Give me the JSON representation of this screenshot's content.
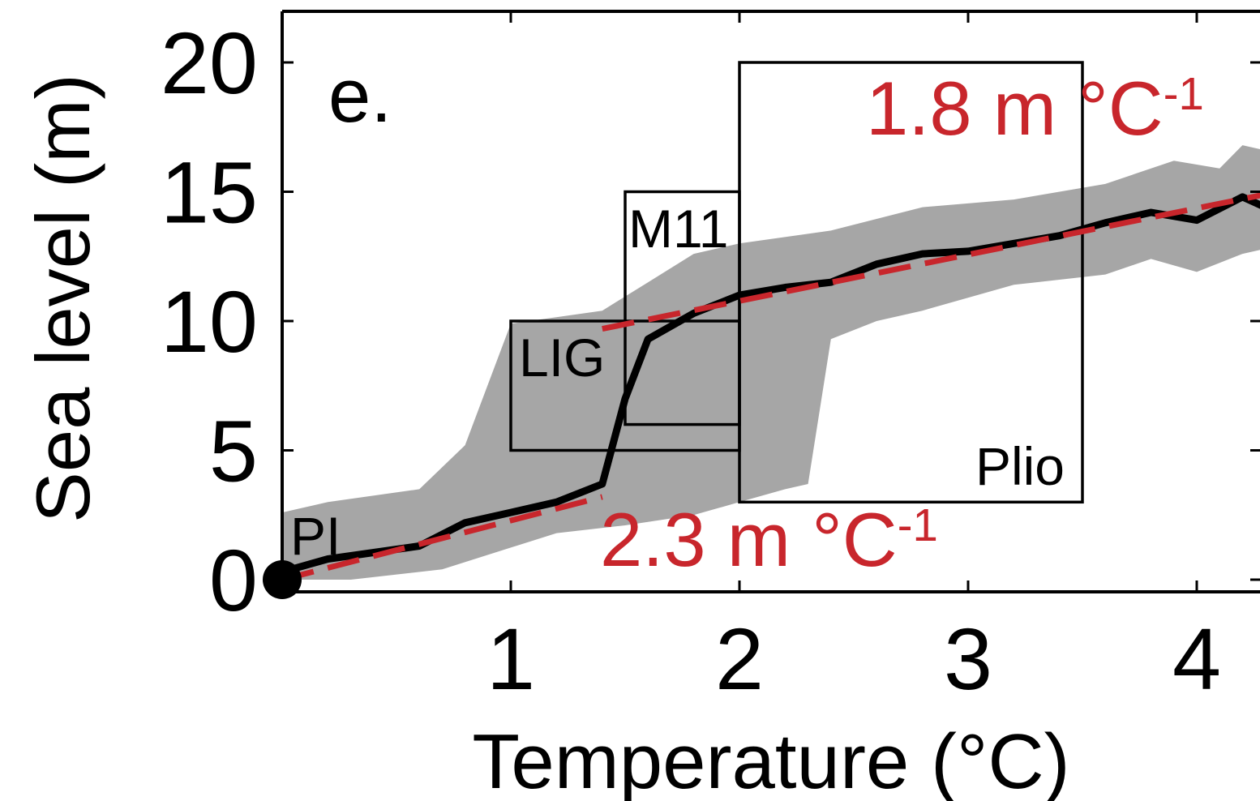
{
  "chart_data": {
    "type": "line",
    "panel_label": "e.",
    "xlabel": "Temperature (°C)",
    "ylabel": "Sea level (m)",
    "xlim": [
      0,
      4.3
    ],
    "ylim": [
      0,
      22
    ],
    "x_ticks": [
      1,
      2,
      3,
      4
    ],
    "y_ticks": [
      0,
      5,
      10,
      15,
      20
    ],
    "grid": false,
    "colors": {
      "band": "#a6a6a6",
      "line": "#000000",
      "fit": "#c8262c",
      "annotation": "#c8262c",
      "box": "#000000",
      "axis": "#000000"
    },
    "uncertainty_band": {
      "upper": [
        [
          0,
          2.6
        ],
        [
          0.2,
          3.0
        ],
        [
          0.6,
          3.5
        ],
        [
          0.8,
          5.2
        ],
        [
          1.0,
          9.9
        ],
        [
          1.4,
          10.4
        ],
        [
          1.6,
          11.5
        ],
        [
          1.8,
          12.6
        ],
        [
          2.0,
          13.0
        ],
        [
          2.4,
          13.5
        ],
        [
          2.8,
          14.4
        ],
        [
          3.2,
          14.7
        ],
        [
          3.6,
          15.3
        ],
        [
          3.9,
          16.2
        ],
        [
          4.1,
          15.9
        ],
        [
          4.2,
          16.8
        ],
        [
          4.3,
          16.6
        ]
      ],
      "lower": [
        [
          4.3,
          12.8
        ],
        [
          4.2,
          12.6
        ],
        [
          4.0,
          11.9
        ],
        [
          3.8,
          12.4
        ],
        [
          3.6,
          11.8
        ],
        [
          3.2,
          11.4
        ],
        [
          2.8,
          10.4
        ],
        [
          2.6,
          10.0
        ],
        [
          2.4,
          9.3
        ],
        [
          2.3,
          3.7
        ],
        [
          2.2,
          3.5
        ],
        [
          2.0,
          3.0
        ],
        [
          1.8,
          2.5
        ],
        [
          1.5,
          2.1
        ],
        [
          1.2,
          1.8
        ],
        [
          0.7,
          0.4
        ],
        [
          0.3,
          0.0
        ],
        [
          0,
          0.0
        ]
      ]
    },
    "series": [
      {
        "x": [
          0,
          0.2,
          0.6,
          0.8,
          1.0,
          1.2,
          1.4,
          1.5,
          1.6,
          1.8,
          2.0,
          2.2,
          2.4,
          2.6,
          2.8,
          3.0,
          3.2,
          3.4,
          3.6,
          3.8,
          4.0,
          4.2,
          4.3
        ],
        "y": [
          0.3,
          0.8,
          1.3,
          2.2,
          2.6,
          3.0,
          3.7,
          7.0,
          9.3,
          10.3,
          11.0,
          11.3,
          11.5,
          12.2,
          12.6,
          12.7,
          13.0,
          13.3,
          13.8,
          14.2,
          13.9,
          14.8,
          14.4
        ]
      }
    ],
    "fits": [
      {
        "label": "2.3 m °C",
        "exponent": "-1",
        "x": [
          0,
          1.4
        ],
        "y": [
          0,
          3.2
        ]
      },
      {
        "label": "1.8 m °C",
        "exponent": "-1",
        "x": [
          1.4,
          4.3
        ],
        "y": [
          9.7,
          14.9
        ]
      }
    ],
    "boxes": [
      {
        "label": "LIG",
        "x": [
          1.0,
          2.0
        ],
        "y": [
          5,
          10
        ]
      },
      {
        "label": "M11",
        "x": [
          1.5,
          2.0
        ],
        "y": [
          6,
          15
        ]
      },
      {
        "label": "Plio",
        "x": [
          2.0,
          3.5
        ],
        "y": [
          3,
          20
        ]
      }
    ],
    "points": [
      {
        "label": "PI",
        "x": 0,
        "y": 0
      }
    ]
  }
}
